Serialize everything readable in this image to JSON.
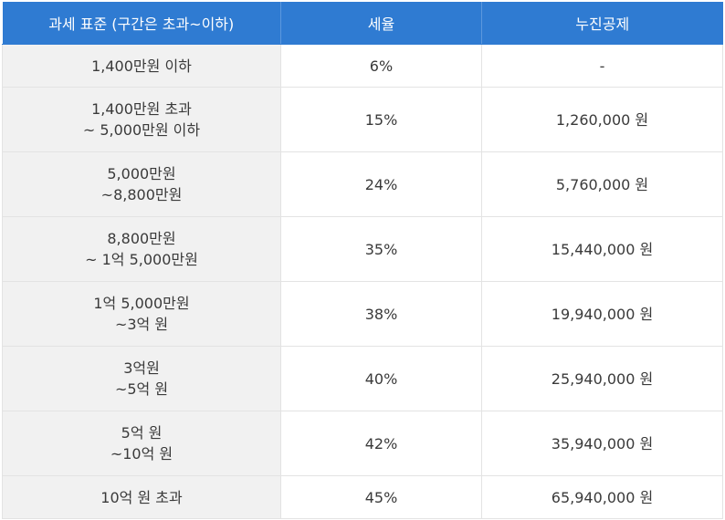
{
  "headers": {
    "bracket": "과세 표준 (구간은 초과~이하)",
    "rate": "세율",
    "deduction": "누진공제"
  },
  "rows": [
    {
      "bracket_line1": "1,400만원 이하",
      "bracket_line2": "",
      "rate": "6%",
      "deduction": "-"
    },
    {
      "bracket_line1": "1,400만원 초과",
      "bracket_line2": "~ 5,000만원 이하",
      "rate": "15%",
      "deduction": "1,260,000 원"
    },
    {
      "bracket_line1": "5,000만원",
      "bracket_line2": "~8,800만원",
      "rate": "24%",
      "deduction": "5,760,000 원"
    },
    {
      "bracket_line1": "8,800만원",
      "bracket_line2": "~ 1억 5,000만원",
      "rate": "35%",
      "deduction": "15,440,000 원"
    },
    {
      "bracket_line1": "1억 5,000만원",
      "bracket_line2": "~3억 원",
      "rate": "38%",
      "deduction": "19,940,000 원"
    },
    {
      "bracket_line1": "3억원",
      "bracket_line2": "~5억 원",
      "rate": "40%",
      "deduction": "25,940,000 원"
    },
    {
      "bracket_line1": "5억 원",
      "bracket_line2": "~10억 원",
      "rate": "42%",
      "deduction": "35,940,000 원"
    },
    {
      "bracket_line1": "10억 원 초과",
      "bracket_line2": "",
      "rate": "45%",
      "deduction": "65,940,000 원"
    }
  ]
}
